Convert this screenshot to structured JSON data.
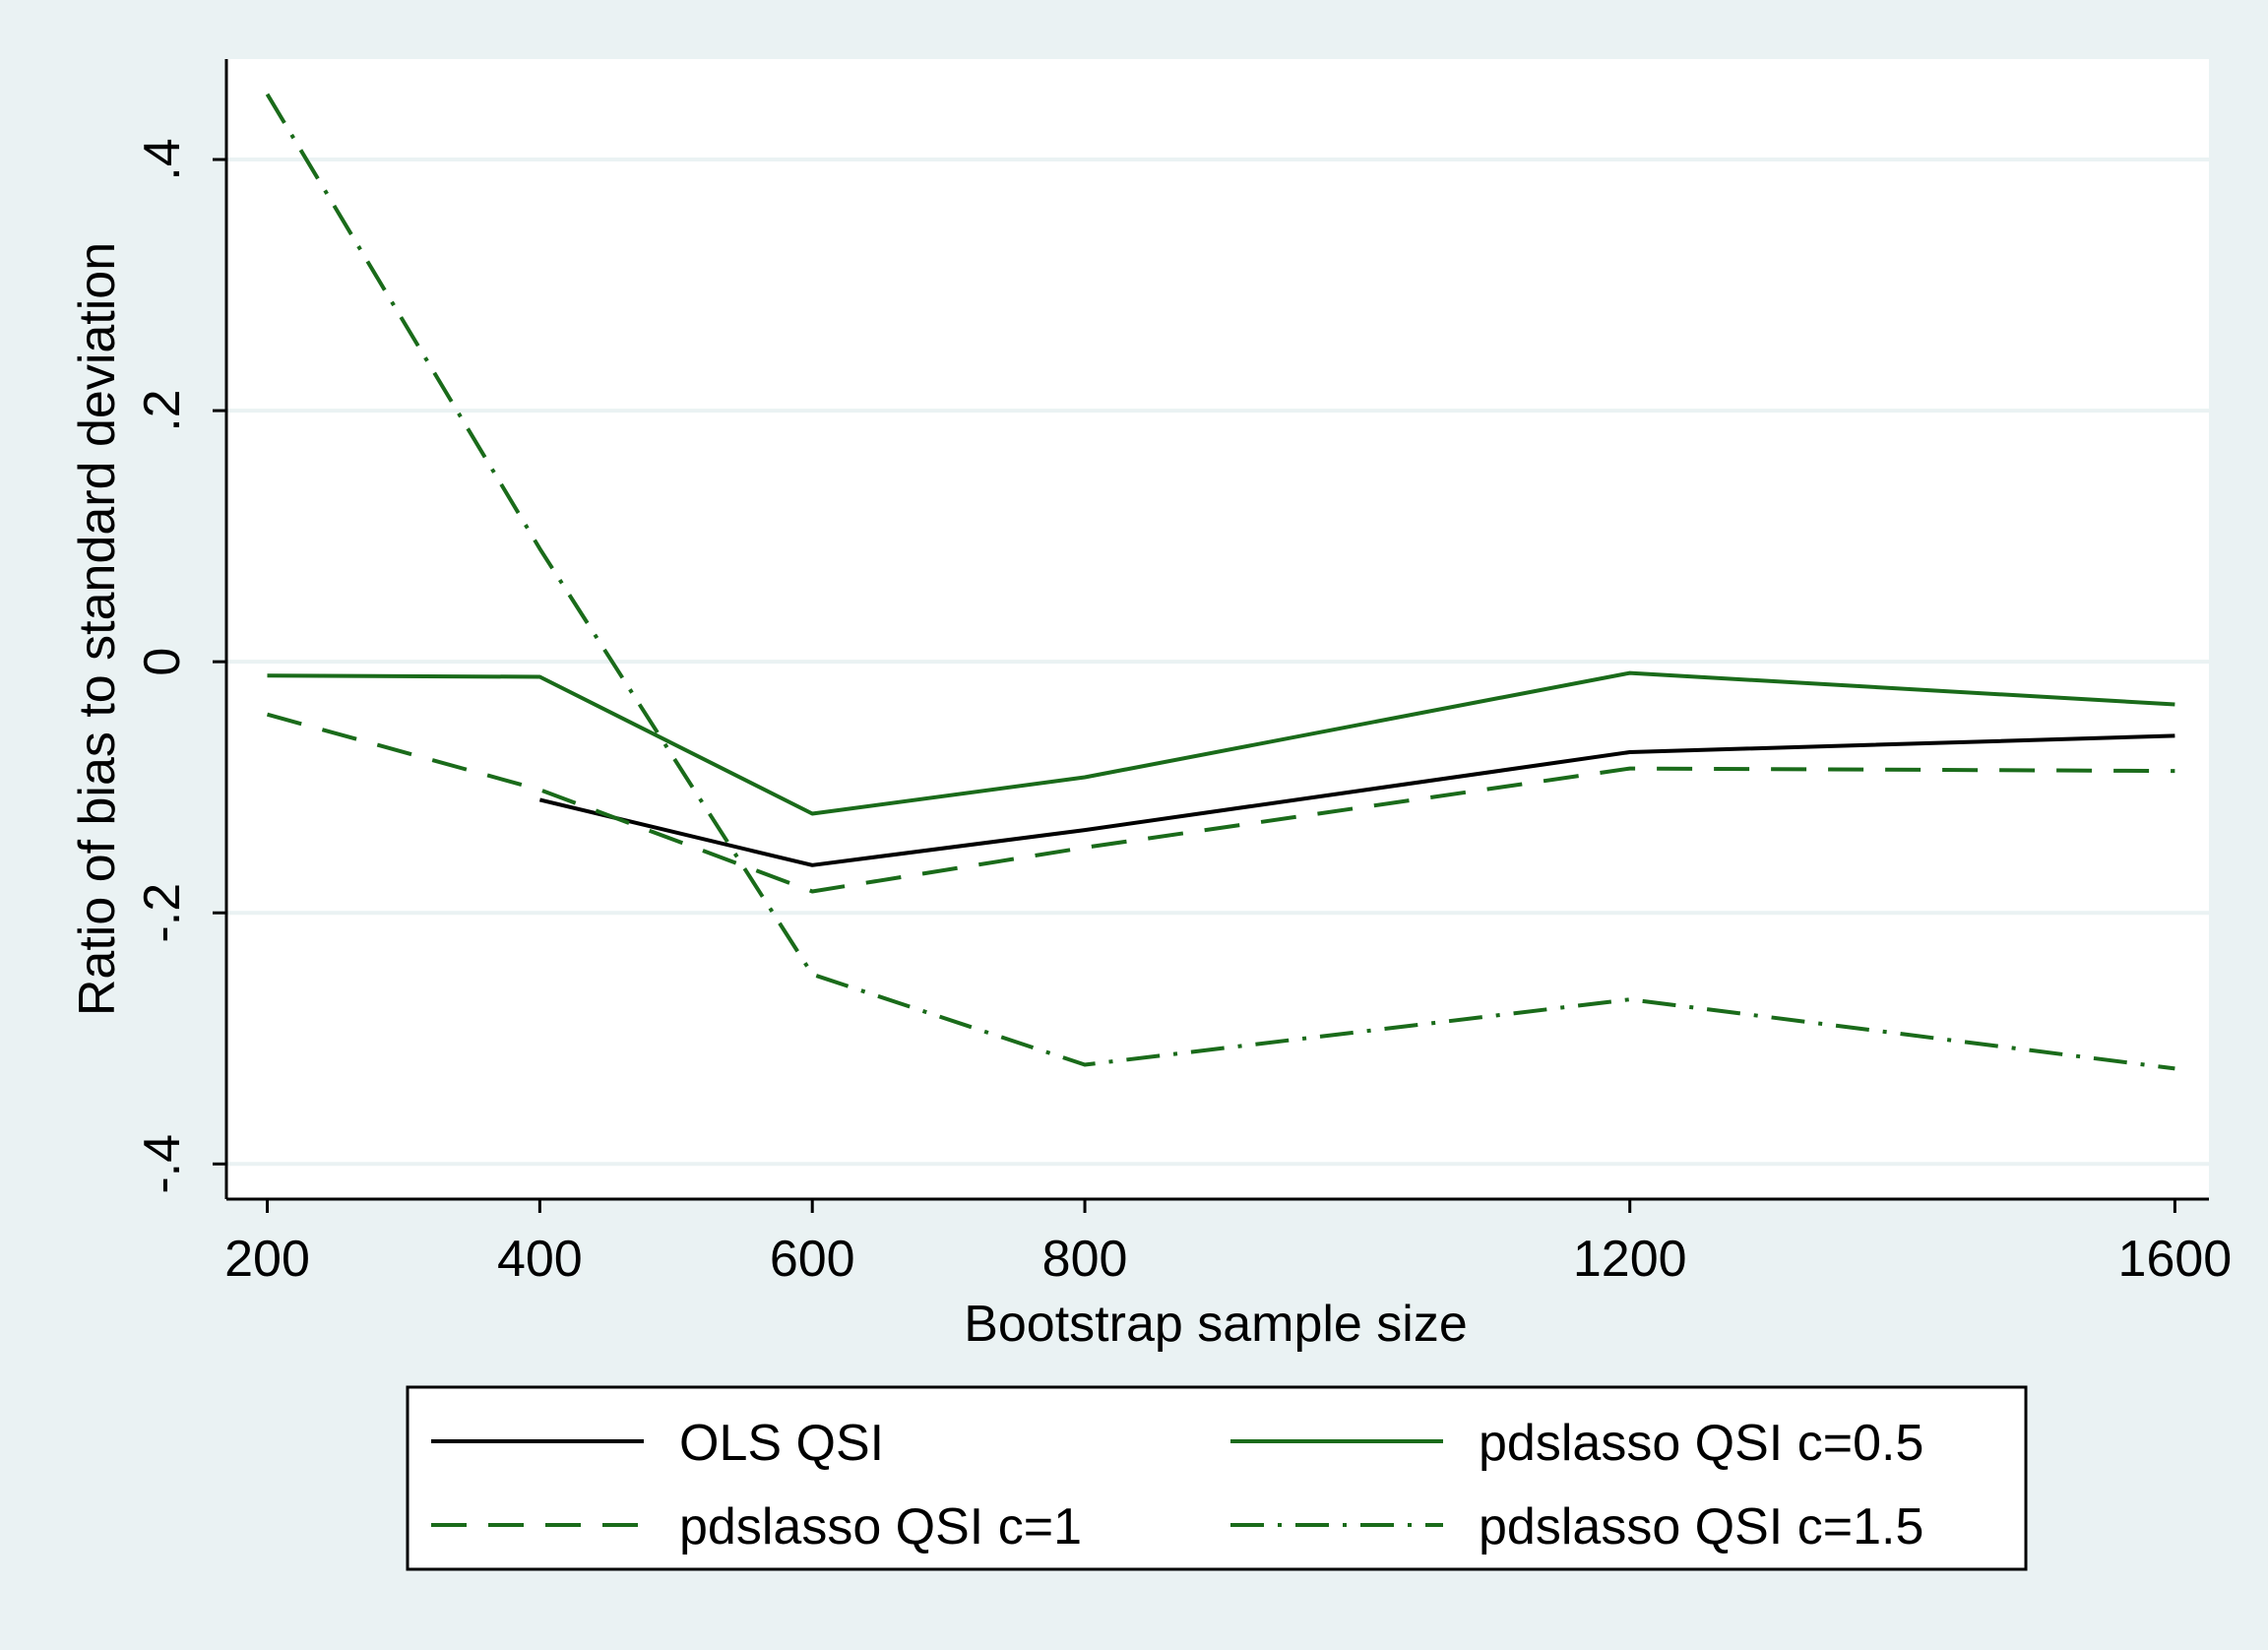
{
  "chart_data": {
    "type": "line",
    "xlabel": "Bootstrap sample size",
    "ylabel": "Ratio of bias to standard deviation",
    "x_ticks": [
      200,
      400,
      600,
      800,
      1200,
      1600
    ],
    "x_tick_labels": [
      "200",
      "400",
      "600",
      "800",
      "1200",
      "1600"
    ],
    "y_ticks": [
      -0.4,
      -0.2,
      0,
      0.2,
      0.4
    ],
    "y_tick_labels": [
      "-.4",
      "-.2",
      "0",
      ".2",
      ".4"
    ],
    "xlim": [
      170,
      1625
    ],
    "ylim": [
      -0.428,
      0.48
    ],
    "grid": true,
    "legend_position": "bottom",
    "series": [
      {
        "name": "OLS QSI",
        "x": [
          400,
          600,
          800,
          1200,
          1600
        ],
        "values": [
          -0.11,
          -0.162,
          -0.134,
          -0.072,
          -0.059
        ],
        "color": "#000000",
        "dash": "solid"
      },
      {
        "name": "pdslasso QSI c=0.5",
        "x": [
          200,
          400,
          600,
          800,
          1200,
          1600
        ],
        "values": [
          -0.011,
          -0.012,
          -0.121,
          -0.092,
          -0.009,
          -0.034
        ],
        "color": "#1a6b1a",
        "dash": "solid"
      },
      {
        "name": "pdslasso QSI c=1",
        "x": [
          200,
          400,
          600,
          800,
          1200,
          1600
        ],
        "values": [
          -0.042,
          -0.102,
          -0.183,
          -0.148,
          -0.085,
          -0.087
        ],
        "color": "#1a6b1a",
        "dash": "dash"
      },
      {
        "name": "pdslasso QSI c=1.5",
        "x": [
          200,
          400,
          600,
          800,
          1200,
          1600
        ],
        "values": [
          0.452,
          0.09,
          -0.249,
          -0.321,
          -0.269,
          -0.324
        ],
        "color": "#1a6b1a",
        "dash": "dashdot"
      }
    ]
  },
  "colors": {
    "page_background": "#eaf2f3",
    "plot_background": "#ffffff",
    "grid": "#eaf2f3"
  }
}
